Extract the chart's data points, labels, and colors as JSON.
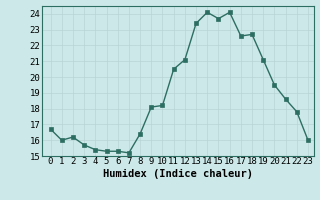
{
  "x": [
    0,
    1,
    2,
    3,
    4,
    5,
    6,
    7,
    8,
    9,
    10,
    11,
    12,
    13,
    14,
    15,
    16,
    17,
    18,
    19,
    20,
    21,
    22,
    23
  ],
  "y": [
    16.7,
    16.0,
    16.2,
    15.7,
    15.4,
    15.3,
    15.3,
    15.2,
    16.4,
    18.1,
    18.2,
    20.5,
    21.1,
    23.4,
    24.1,
    23.7,
    24.1,
    22.6,
    22.7,
    21.1,
    19.5,
    18.6,
    17.8,
    16.0
  ],
  "line_color": "#2d6e63",
  "marker": "s",
  "marker_size": 2.5,
  "line_width": 1.0,
  "bg_color": "#cce8e8",
  "grid_color": "#b8d4d4",
  "xlabel": "Humidex (Indice chaleur)",
  "ylim": [
    15,
    24.5
  ],
  "yticks": [
    15,
    16,
    17,
    18,
    19,
    20,
    21,
    22,
    23,
    24
  ],
  "xticks": [
    0,
    1,
    2,
    3,
    4,
    5,
    6,
    7,
    8,
    9,
    10,
    11,
    12,
    13,
    14,
    15,
    16,
    17,
    18,
    19,
    20,
    21,
    22,
    23
  ],
  "tick_font_size": 6.5,
  "xlabel_font_size": 7.5
}
